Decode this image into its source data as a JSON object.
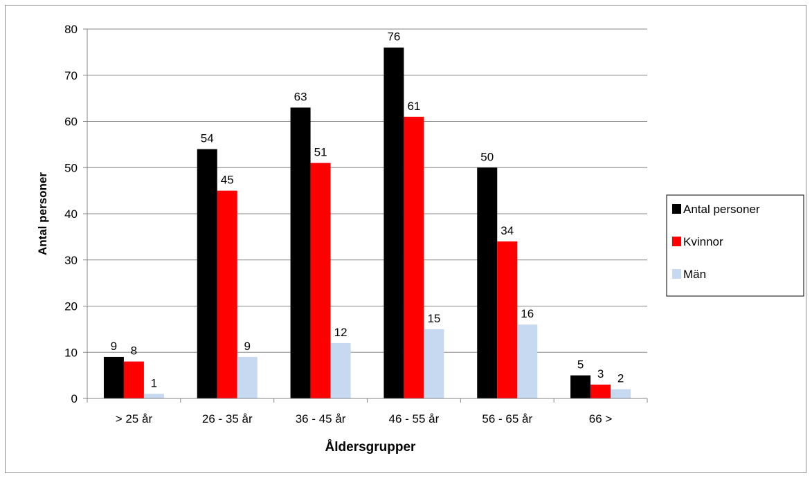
{
  "chart_data": {
    "type": "bar",
    "categories": [
      "> 25 år",
      "26 - 35 år",
      "36 - 45 år",
      "46 - 55 år",
      "56 - 65 år",
      "66 >"
    ],
    "series": [
      {
        "name": "Antal personer",
        "values": [
          9,
          54,
          63,
          76,
          50,
          5
        ],
        "color": "#000000"
      },
      {
        "name": "Kvinnor",
        "values": [
          8,
          45,
          51,
          61,
          34,
          3
        ],
        "color": "#ff0000"
      },
      {
        "name": "Män",
        "values": [
          1,
          9,
          12,
          15,
          16,
          2
        ],
        "color": "#c6d9f1"
      }
    ],
    "xlabel": "Åldersgrupper",
    "ylabel": "Antal personer",
    "ylim": [
      0,
      80
    ],
    "yticks": [
      0,
      10,
      20,
      30,
      40,
      50,
      60,
      70,
      80
    ],
    "grid": true,
    "data_labels": true,
    "legend_position": "right"
  }
}
